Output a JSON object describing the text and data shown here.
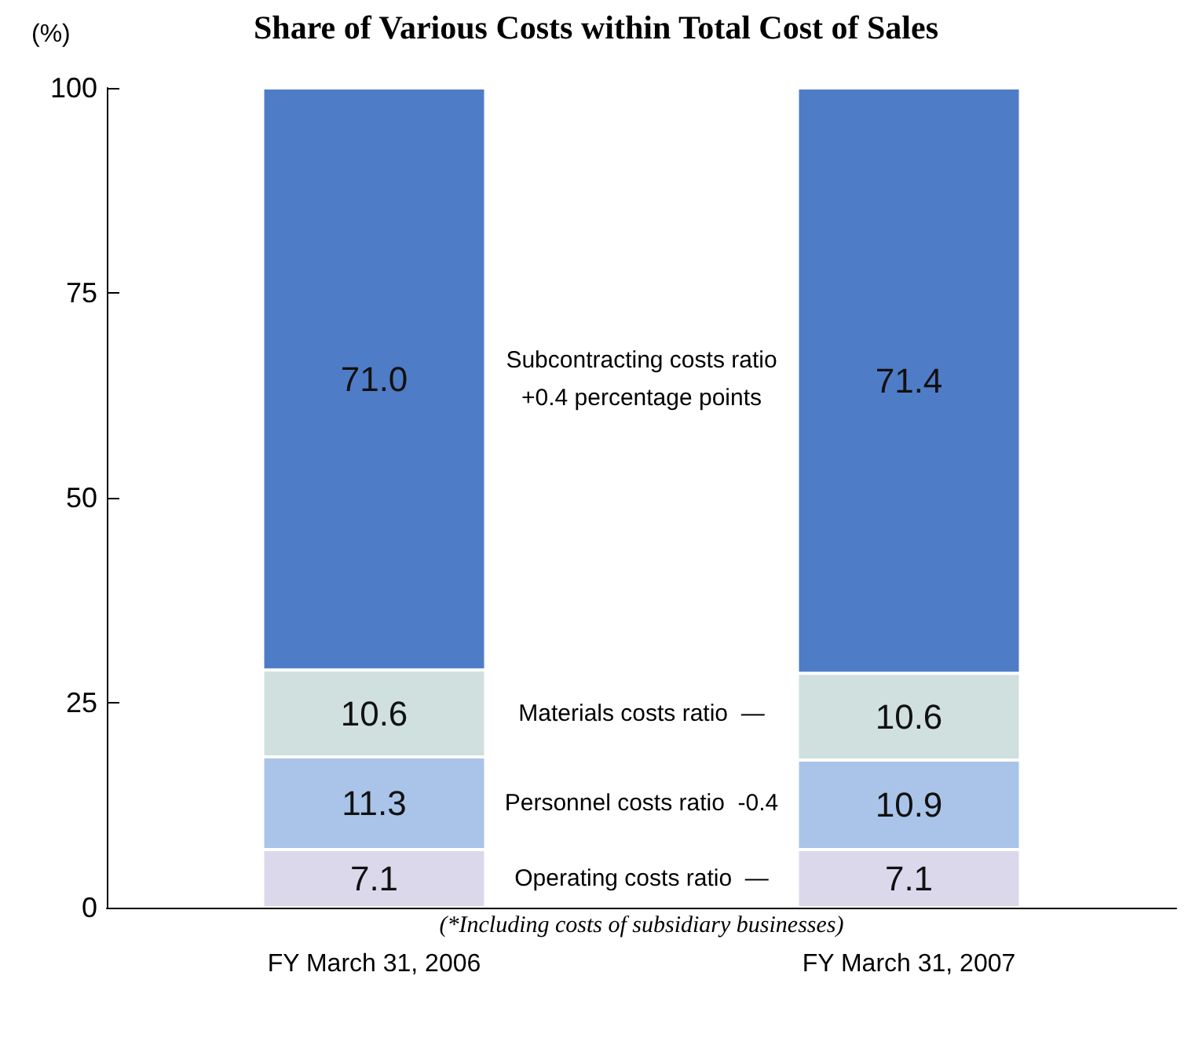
{
  "chart_data": {
    "type": "bar",
    "stacked": true,
    "title": "Share of Various Costs within Total Cost of Sales",
    "ylabel": "(%)",
    "categories": [
      "FY March 31, 2006",
      "FY March 31, 2007"
    ],
    "series": [
      {
        "color": "#dcd8ec",
        "values": [
          7.1,
          7.1
        ],
        "value_labels": [
          "7.1",
          "7.1"
        ]
      },
      {
        "color": "#a9c4e8",
        "values": [
          11.3,
          10.9
        ],
        "value_labels": [
          "11.3",
          "10.9"
        ]
      },
      {
        "color": "#cfe0de",
        "values": [
          10.6,
          10.6
        ],
        "value_labels": [
          "10.6",
          "10.6"
        ]
      },
      {
        "color": "#4f7cc6",
        "values": [
          71.0,
          71.4
        ],
        "value_labels": [
          "71.0",
          "71.4"
        ]
      }
    ],
    "annotations": [
      "Operating costs ratio  —",
      "Personnel costs ratio  -0.4",
      "Materials costs ratio  —",
      "Subcontracting costs ratio\n+0.4 percentage points",
      "(*Including costs of subsidiary businesses)"
    ],
    "ylim": [
      0,
      100
    ],
    "yticks": [
      0,
      25,
      50,
      75,
      100
    ],
    "grid": false
  }
}
